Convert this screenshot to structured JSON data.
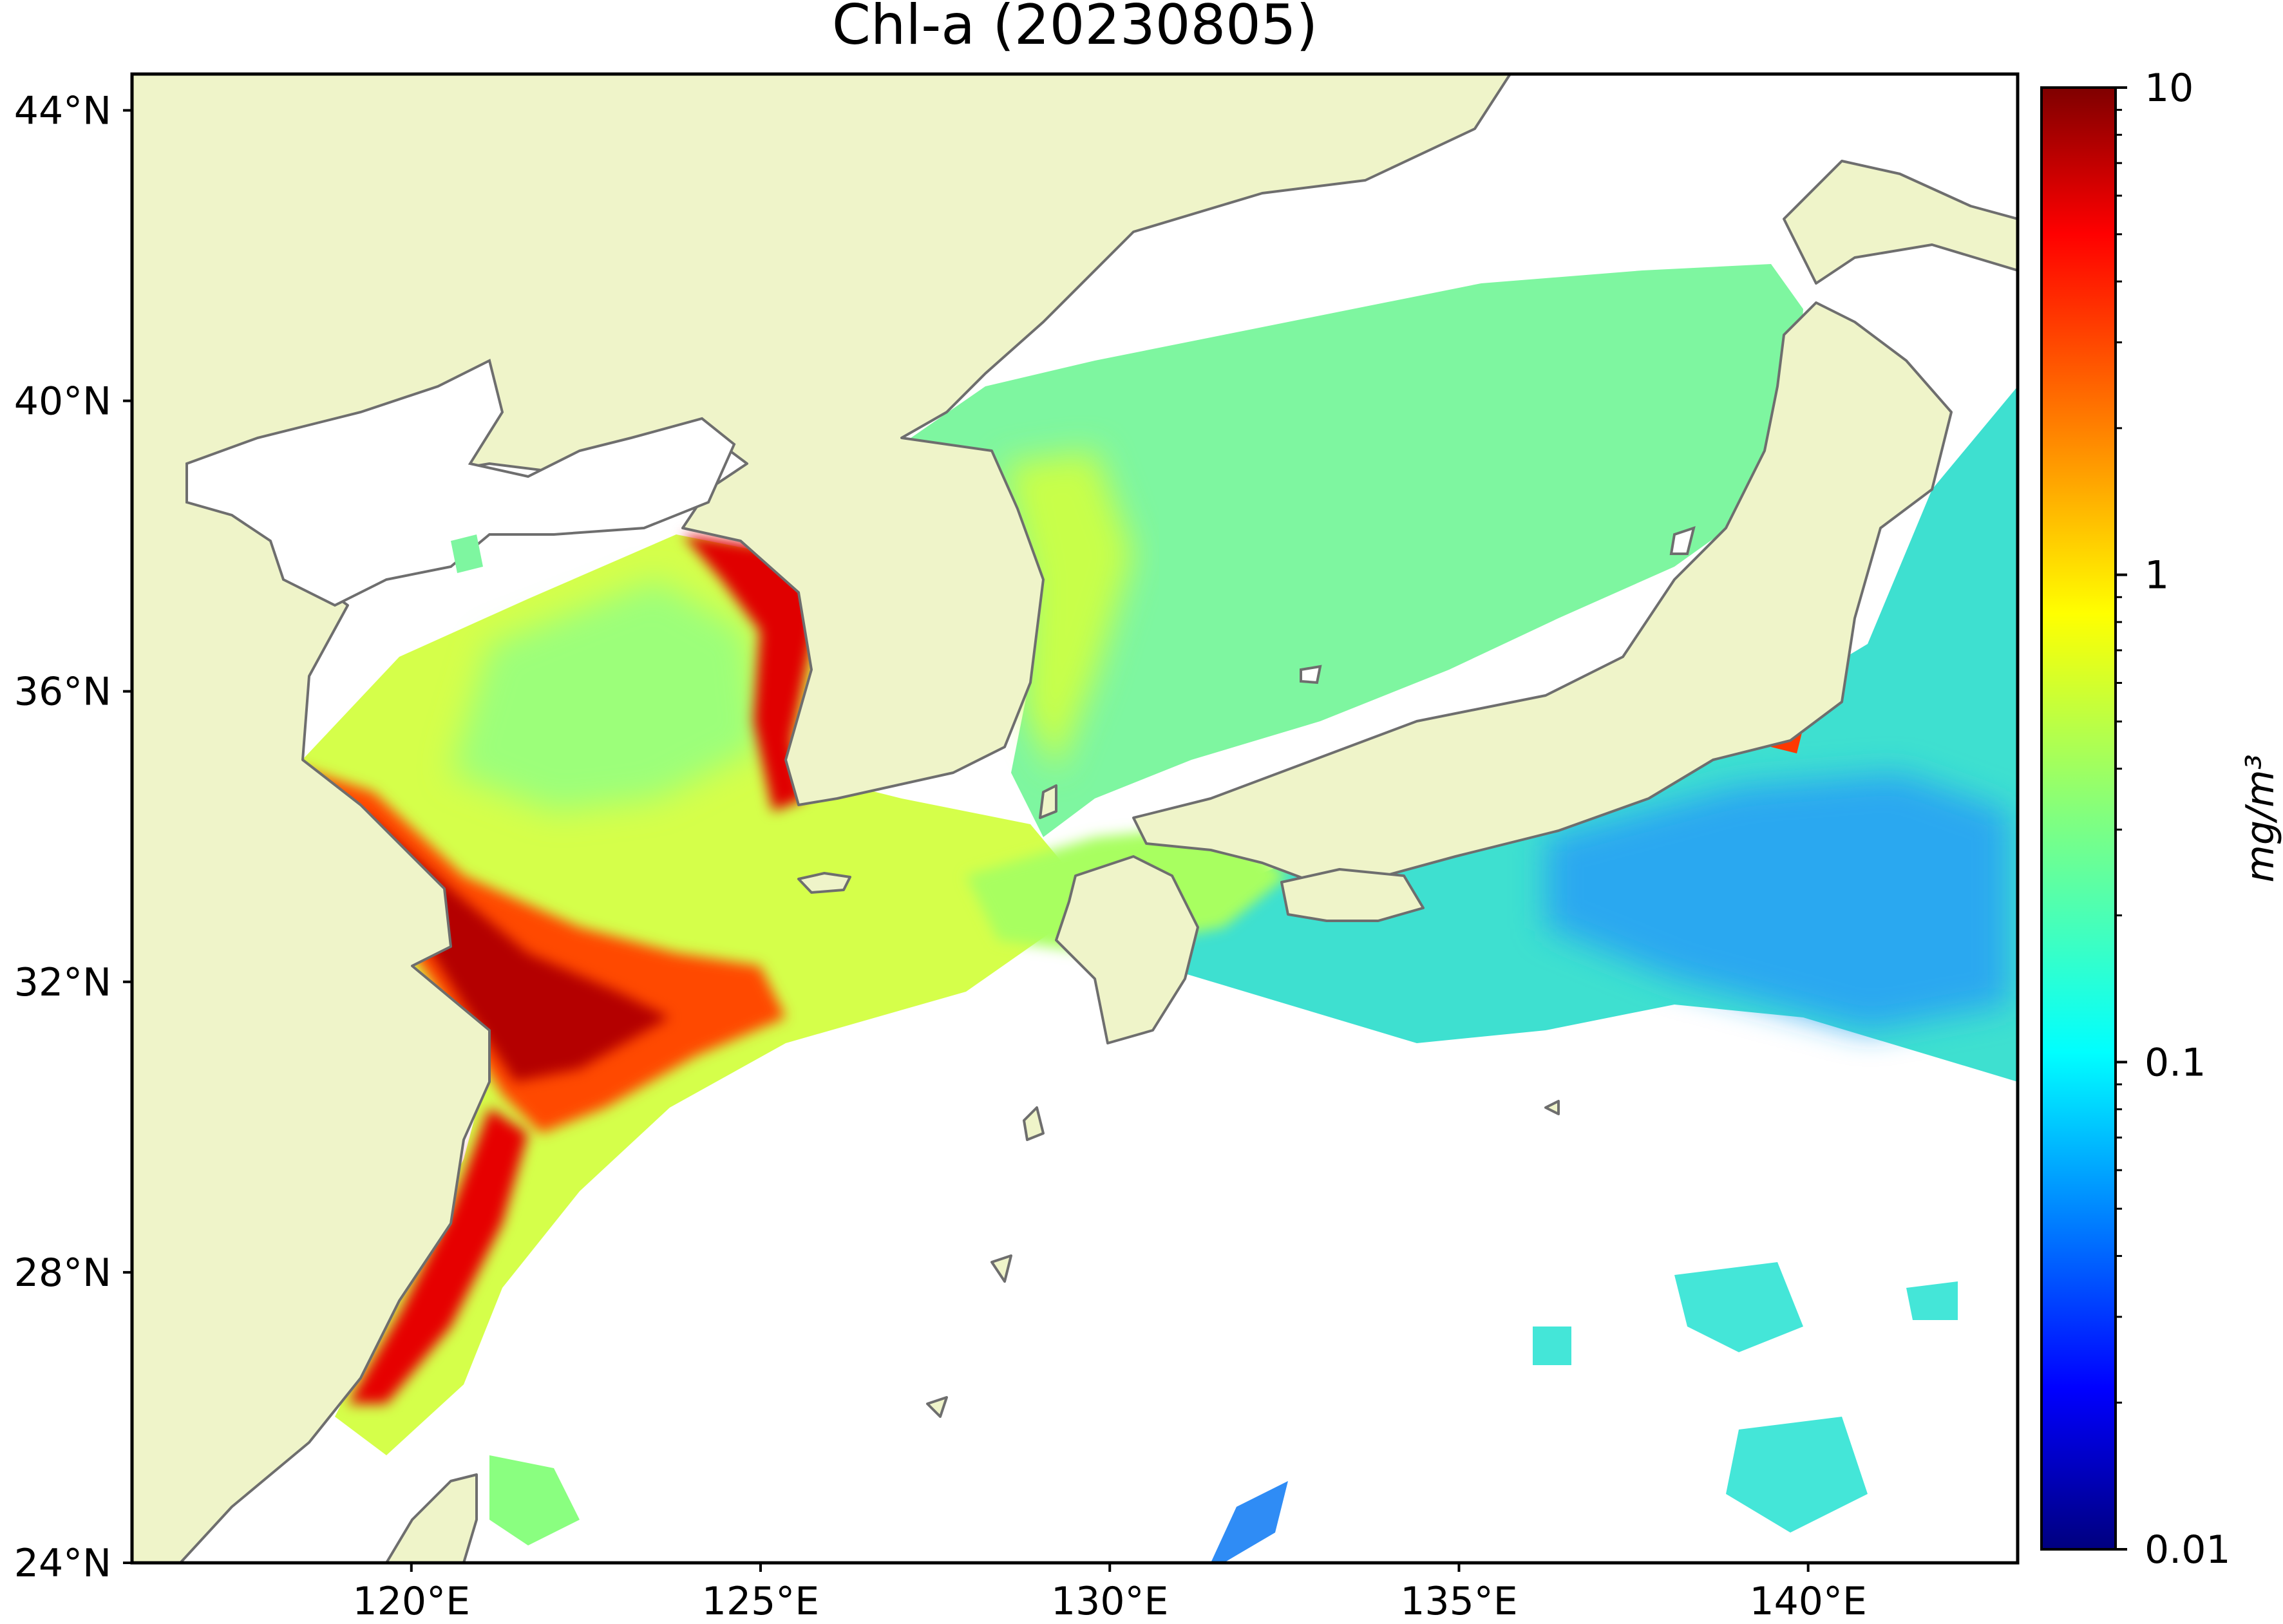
{
  "title": "Chl-a (20230805)",
  "map": {
    "lon_range": [
      116.0,
      143.0
    ],
    "lat_range": [
      24.0,
      44.5
    ],
    "lat_ticks": [
      {
        "value": 44,
        "label": "44°N"
      },
      {
        "value": 40,
        "label": "40°N"
      },
      {
        "value": 36,
        "label": "36°N"
      },
      {
        "value": 32,
        "label": "32°N"
      },
      {
        "value": 28,
        "label": "28°N"
      },
      {
        "value": 24,
        "label": "24°N"
      }
    ],
    "lon_ticks": [
      {
        "value": 120,
        "label": "120°E"
      },
      {
        "value": 125,
        "label": "125°E"
      },
      {
        "value": 130,
        "label": "130°E"
      },
      {
        "value": 135,
        "label": "135°E"
      },
      {
        "value": 140,
        "label": "140°E"
      }
    ],
    "colors": {
      "land": "#eff4c9",
      "coastline": "#6e6e6e",
      "no_data": "#ffffff"
    }
  },
  "colorbar": {
    "scale": "log",
    "min": 0.01,
    "max": 10,
    "label": "mg/m³",
    "ticks": [
      {
        "value": 10,
        "label": "10"
      },
      {
        "value": 1,
        "label": "1"
      },
      {
        "value": 0.1,
        "label": "0.1"
      },
      {
        "value": 0.01,
        "label": "0.01"
      }
    ],
    "colormap": "jet",
    "colors": [
      "#00007f",
      "#0000ff",
      "#0080ff",
      "#00ffff",
      "#80ff80",
      "#ffff00",
      "#ff8000",
      "#ff0000",
      "#7f0000"
    ]
  }
}
